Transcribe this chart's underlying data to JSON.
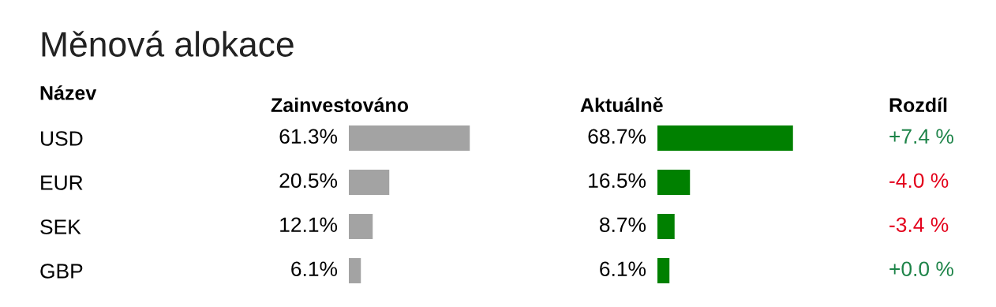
{
  "chart_data": [
    {
      "type": "other",
      "title": "Měnová alokace"
    },
    {
      "type": "bar",
      "orientation": "horizontal",
      "title": "Zainvestováno",
      "ylabel": "Název",
      "categories": [
        "USD",
        "EUR",
        "SEK",
        "GBP"
      ],
      "values": [
        61.3,
        20.5,
        12.1,
        6.1
      ],
      "value_labels": [
        "61.3%",
        "20.5%",
        "12.1%",
        "6.1%"
      ],
      "color": "#a3a3a3",
      "tick_labels": "y"
    },
    {
      "type": "bar",
      "orientation": "horizontal",
      "title": "Aktuálně",
      "categories": [
        null,
        null,
        null,
        null
      ],
      "values": [
        68.7,
        16.5,
        8.7,
        6.1
      ],
      "value_labels": [
        "68.7%",
        "16.5%",
        "8.7%",
        "6.1%"
      ],
      "color": "#008000",
      "tick_labels": false
    },
    {
      "type": "other",
      "title": "Rozdíl",
      "annotations": [
        "+7.4 %",
        "-4.0 %",
        "-3.4 %",
        "+0.0 %"
      ],
      "colors": [
        "#1e8449",
        "#e3001b",
        "#e3001b",
        "#1e8449"
      ]
    }
  ]
}
